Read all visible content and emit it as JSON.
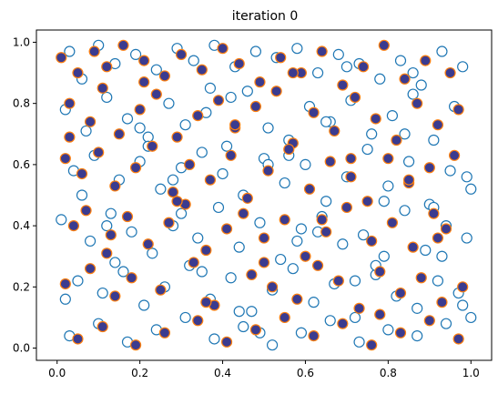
{
  "chart_data": {
    "type": "scatter",
    "title": "iteration 0",
    "xlabel": "",
    "ylabel": "",
    "xlim": [
      -0.05,
      1.05
    ],
    "ylim": [
      -0.04,
      1.04
    ],
    "xticks": [
      0.0,
      0.2,
      0.4,
      0.6,
      0.8,
      1.0
    ],
    "yticks": [
      0.0,
      0.2,
      0.4,
      0.6,
      0.8,
      1.0
    ],
    "xtick_labels": [
      "0.0",
      "0.2",
      "0.4",
      "0.6",
      "0.8",
      "1.0"
    ],
    "ytick_labels": [
      "0.0",
      "0.2",
      "0.4",
      "0.6",
      "0.8",
      "1.0"
    ],
    "grid": false,
    "legend": "none",
    "series": [
      {
        "marker": "hollow circle",
        "edge_color": "#1f77b4",
        "face_color": "#ffffff",
        "x": [
          0.03,
          0.06,
          0.1,
          0.14,
          0.19,
          0.24,
          0.29,
          0.33,
          0.38,
          0.43,
          0.48,
          0.53,
          0.58,
          0.63,
          0.68,
          0.73,
          0.78,
          0.83,
          0.88,
          0.93,
          0.98,
          0.02,
          0.07,
          0.12,
          0.17,
          0.22,
          0.27,
          0.31,
          0.36,
          0.41,
          0.46,
          0.51,
          0.56,
          0.61,
          0.66,
          0.71,
          0.76,
          0.81,
          0.86,
          0.91,
          0.96,
          0.04,
          0.09,
          0.15,
          0.2,
          0.25,
          0.3,
          0.35,
          0.4,
          0.45,
          0.5,
          0.55,
          0.6,
          0.65,
          0.7,
          0.75,
          0.8,
          0.85,
          0.9,
          0.95,
          1.0,
          0.01,
          0.08,
          0.13,
          0.18,
          0.23,
          0.28,
          0.34,
          0.39,
          0.44,
          0.49,
          0.54,
          0.59,
          0.64,
          0.69,
          0.74,
          0.79,
          0.84,
          0.89,
          0.94,
          0.99,
          0.05,
          0.11,
          0.16,
          0.21,
          0.26,
          0.32,
          0.37,
          0.42,
          0.47,
          0.52,
          0.57,
          0.62,
          0.67,
          0.72,
          0.77,
          0.82,
          0.87,
          0.92,
          0.97,
          0.03,
          0.1,
          0.17,
          0.24,
          0.31,
          0.38,
          0.45,
          0.52,
          0.59,
          0.66,
          0.73,
          0.8,
          0.87,
          0.94,
          1.0,
          0.06,
          0.14,
          0.22,
          0.3,
          0.37,
          0.44,
          0.51,
          0.58,
          0.65,
          0.72,
          0.79,
          0.86,
          0.93,
          0.99,
          0.02,
          0.12,
          0.2,
          0.28,
          0.35,
          0.42,
          0.49,
          0.56,
          0.63,
          0.7,
          0.77,
          0.84,
          0.91,
          0.98
        ],
        "y": [
          0.97,
          0.88,
          0.99,
          0.93,
          0.96,
          0.91,
          0.98,
          0.94,
          0.99,
          0.92,
          0.97,
          0.95,
          0.98,
          0.9,
          0.96,
          0.93,
          0.88,
          0.94,
          0.86,
          0.97,
          0.92,
          0.78,
          0.71,
          0.82,
          0.75,
          0.69,
          0.8,
          0.73,
          0.77,
          0.66,
          0.84,
          0.72,
          0.68,
          0.79,
          0.74,
          0.81,
          0.7,
          0.76,
          0.83,
          0.68,
          0.79,
          0.58,
          0.63,
          0.55,
          0.61,
          0.52,
          0.59,
          0.64,
          0.57,
          0.5,
          0.62,
          0.54,
          0.6,
          0.48,
          0.56,
          0.65,
          0.53,
          0.61,
          0.47,
          0.58,
          0.52,
          0.42,
          0.35,
          0.44,
          0.38,
          0.31,
          0.4,
          0.36,
          0.46,
          0.33,
          0.41,
          0.29,
          0.39,
          0.43,
          0.34,
          0.37,
          0.3,
          0.45,
          0.32,
          0.4,
          0.36,
          0.22,
          0.18,
          0.25,
          0.14,
          0.2,
          0.27,
          0.16,
          0.23,
          0.12,
          0.19,
          0.26,
          0.15,
          0.21,
          0.1,
          0.24,
          0.17,
          0.13,
          0.22,
          0.18,
          0.04,
          0.08,
          0.02,
          0.06,
          0.1,
          0.03,
          0.07,
          0.01,
          0.05,
          0.09,
          0.02,
          0.06,
          0.04,
          0.08,
          0.1,
          0.5,
          0.28,
          0.66,
          0.44,
          0.85,
          0.12,
          0.6,
          0.35,
          0.74,
          0.22,
          0.48,
          0.9,
          0.3,
          0.56,
          0.16,
          0.4,
          0.72,
          0.55,
          0.25,
          0.82,
          0.05,
          0.63,
          0.38,
          0.92,
          0.27,
          0.7,
          0.46,
          0.14
        ]
      },
      {
        "marker": "filled circle",
        "edge_color": "#ff7f0e",
        "face_color": "#3b3b8f",
        "x": [
          0.01,
          0.05,
          0.09,
          0.12,
          0.16,
          0.21,
          0.26,
          0.3,
          0.35,
          0.4,
          0.44,
          0.49,
          0.54,
          0.59,
          0.64,
          0.69,
          0.74,
          0.79,
          0.84,
          0.89,
          0.95,
          0.03,
          0.08,
          0.11,
          0.15,
          0.2,
          0.24,
          0.29,
          0.34,
          0.39,
          0.43,
          0.48,
          0.53,
          0.57,
          0.62,
          0.67,
          0.72,
          0.77,
          0.82,
          0.87,
          0.92,
          0.97,
          0.02,
          0.06,
          0.1,
          0.14,
          0.19,
          0.23,
          0.28,
          0.32,
          0.37,
          0.42,
          0.46,
          0.51,
          0.56,
          0.61,
          0.66,
          0.71,
          0.75,
          0.8,
          0.85,
          0.9,
          0.96,
          0.04,
          0.07,
          0.13,
          0.17,
          0.22,
          0.27,
          0.31,
          0.36,
          0.41,
          0.45,
          0.5,
          0.55,
          0.6,
          0.65,
          0.7,
          0.76,
          0.81,
          0.86,
          0.91,
          0.94,
          0.02,
          0.08,
          0.14,
          0.18,
          0.25,
          0.33,
          0.38,
          0.47,
          0.52,
          0.58,
          0.63,
          0.68,
          0.73,
          0.78,
          0.83,
          0.88,
          0.93,
          0.98,
          0.05,
          0.11,
          0.19,
          0.26,
          0.34,
          0.41,
          0.48,
          0.55,
          0.62,
          0.69,
          0.76,
          0.83,
          0.9,
          0.97,
          0.03,
          0.12,
          0.21,
          0.29,
          0.36,
          0.43,
          0.5,
          0.57,
          0.64,
          0.71,
          0.78,
          0.85,
          0.92
        ],
        "y": [
          0.95,
          0.9,
          0.97,
          0.92,
          0.99,
          0.94,
          0.89,
          0.96,
          0.91,
          0.98,
          0.93,
          0.87,
          0.95,
          0.9,
          0.97,
          0.86,
          0.92,
          0.99,
          0.88,
          0.94,
          0.9,
          0.8,
          0.74,
          0.85,
          0.7,
          0.78,
          0.83,
          0.69,
          0.76,
          0.81,
          0.72,
          0.79,
          0.84,
          0.67,
          0.77,
          0.71,
          0.82,
          0.75,
          0.68,
          0.8,
          0.73,
          0.78,
          0.62,
          0.57,
          0.64,
          0.53,
          0.59,
          0.66,
          0.51,
          0.6,
          0.55,
          0.63,
          0.49,
          0.58,
          0.65,
          0.52,
          0.61,
          0.56,
          0.48,
          0.62,
          0.54,
          0.59,
          0.63,
          0.4,
          0.45,
          0.37,
          0.43,
          0.34,
          0.41,
          0.47,
          0.32,
          0.39,
          0.44,
          0.36,
          0.42,
          0.3,
          0.38,
          0.46,
          0.35,
          0.41,
          0.33,
          0.44,
          0.39,
          0.21,
          0.26,
          0.17,
          0.23,
          0.19,
          0.28,
          0.14,
          0.24,
          0.2,
          0.16,
          0.27,
          0.22,
          0.13,
          0.25,
          0.18,
          0.23,
          0.15,
          0.2,
          0.03,
          0.07,
          0.01,
          0.05,
          0.09,
          0.02,
          0.06,
          0.1,
          0.04,
          0.08,
          0.01,
          0.05,
          0.09,
          0.03,
          0.69,
          0.31,
          0.87,
          0.48,
          0.15,
          0.73,
          0.28,
          0.9,
          0.42,
          0.62,
          0.11,
          0.55,
          0.36
        ]
      }
    ]
  }
}
